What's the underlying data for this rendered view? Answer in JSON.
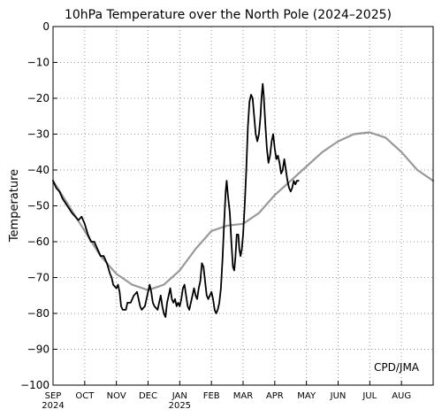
{
  "chart_data": {
    "type": "line",
    "title": "10hPa Temperature over the North Pole (2024–2025)",
    "ylabel": "Temperature",
    "xlabel": "",
    "ylim": [
      -100,
      0
    ],
    "yticks": [
      0,
      -10,
      -20,
      -30,
      -40,
      -50,
      -60,
      -70,
      -80,
      -90,
      -100
    ],
    "xlim": [
      0,
      12
    ],
    "x_unit": "months since 2024-09-01",
    "xticks": [
      {
        "x": 0,
        "label": "SEP",
        "sub": "2024"
      },
      {
        "x": 1,
        "label": "OCT"
      },
      {
        "x": 2,
        "label": "NOV"
      },
      {
        "x": 3,
        "label": "DEC"
      },
      {
        "x": 4,
        "label": "JAN",
        "sub": "2025"
      },
      {
        "x": 5,
        "label": "FEB"
      },
      {
        "x": 6,
        "label": "MAR"
      },
      {
        "x": 7,
        "label": "APR"
      },
      {
        "x": 8,
        "label": "MAY"
      },
      {
        "x": 9,
        "label": "JUN"
      },
      {
        "x": 10,
        "label": "JUL"
      },
      {
        "x": 11,
        "label": "AUG"
      }
    ],
    "grid": true,
    "annotation": "CPD/JMA",
    "series": [
      {
        "color": "#999999",
        "points": [
          [
            0,
            -43
          ],
          [
            0.5,
            -50
          ],
          [
            1,
            -57
          ],
          [
            1.5,
            -64
          ],
          [
            2,
            -69
          ],
          [
            2.5,
            -72
          ],
          [
            3,
            -73.5
          ],
          [
            3.5,
            -72
          ],
          [
            4,
            -68
          ],
          [
            4.5,
            -62
          ],
          [
            5,
            -57
          ],
          [
            5.5,
            -55.5
          ],
          [
            6,
            -55
          ],
          [
            6.5,
            -52
          ],
          [
            7,
            -47
          ],
          [
            7.5,
            -43
          ],
          [
            8,
            -39
          ],
          [
            8.5,
            -35
          ],
          [
            9,
            -32
          ],
          [
            9.5,
            -30
          ],
          [
            10,
            -29.5
          ],
          [
            10.5,
            -31
          ],
          [
            11,
            -35
          ],
          [
            11.5,
            -40
          ],
          [
            12,
            -43
          ]
        ]
      },
      {
        "color": "#000000",
        "points": [
          [
            0,
            -43
          ],
          [
            0.1,
            -45
          ],
          [
            0.2,
            -46
          ],
          [
            0.3,
            -48
          ],
          [
            0.45,
            -50
          ],
          [
            0.6,
            -52
          ],
          [
            0.8,
            -54
          ],
          [
            0.9,
            -53
          ],
          [
            1,
            -55
          ],
          [
            1.1,
            -58
          ],
          [
            1.2,
            -60
          ],
          [
            1.3,
            -60
          ],
          [
            1.4,
            -62
          ],
          [
            1.5,
            -64
          ],
          [
            1.6,
            -64
          ],
          [
            1.7,
            -66
          ],
          [
            1.8,
            -69
          ],
          [
            1.85,
            -70
          ],
          [
            1.9,
            -72
          ],
          [
            2,
            -73
          ],
          [
            2.05,
            -72
          ],
          [
            2.1,
            -74
          ],
          [
            2.15,
            -78
          ],
          [
            2.2,
            -79
          ],
          [
            2.3,
            -79
          ],
          [
            2.35,
            -77
          ],
          [
            2.45,
            -77
          ],
          [
            2.55,
            -75
          ],
          [
            2.65,
            -74
          ],
          [
            2.7,
            -76
          ],
          [
            2.75,
            -78
          ],
          [
            2.8,
            -79
          ],
          [
            2.9,
            -78
          ],
          [
            2.95,
            -76
          ],
          [
            3,
            -74
          ],
          [
            3.05,
            -72
          ],
          [
            3.1,
            -74
          ],
          [
            3.15,
            -77
          ],
          [
            3.2,
            -78
          ],
          [
            3.3,
            -79
          ],
          [
            3.35,
            -77
          ],
          [
            3.4,
            -75
          ],
          [
            3.45,
            -78
          ],
          [
            3.5,
            -80
          ],
          [
            3.55,
            -81
          ],
          [
            3.6,
            -77
          ],
          [
            3.65,
            -75
          ],
          [
            3.7,
            -73
          ],
          [
            3.75,
            -76
          ],
          [
            3.8,
            -77
          ],
          [
            3.85,
            -76
          ],
          [
            3.9,
            -78
          ],
          [
            3.95,
            -77
          ],
          [
            4,
            -78
          ],
          [
            4.05,
            -76
          ],
          [
            4.1,
            -73
          ],
          [
            4.15,
            -72
          ],
          [
            4.2,
            -75
          ],
          [
            4.25,
            -78
          ],
          [
            4.3,
            -79
          ],
          [
            4.35,
            -77
          ],
          [
            4.4,
            -75
          ],
          [
            4.45,
            -73
          ],
          [
            4.5,
            -75
          ],
          [
            4.55,
            -76
          ],
          [
            4.6,
            -73
          ],
          [
            4.65,
            -71
          ],
          [
            4.7,
            -66
          ],
          [
            4.75,
            -67
          ],
          [
            4.8,
            -71
          ],
          [
            4.85,
            -75
          ],
          [
            4.9,
            -76
          ],
          [
            4.95,
            -75
          ],
          [
            5,
            -74
          ],
          [
            5.05,
            -76
          ],
          [
            5.1,
            -79
          ],
          [
            5.15,
            -80
          ],
          [
            5.2,
            -79
          ],
          [
            5.25,
            -77
          ],
          [
            5.3,
            -73
          ],
          [
            5.35,
            -65
          ],
          [
            5.4,
            -55
          ],
          [
            5.45,
            -46
          ],
          [
            5.48,
            -43
          ],
          [
            5.52,
            -47
          ],
          [
            5.58,
            -52
          ],
          [
            5.63,
            -60
          ],
          [
            5.68,
            -67
          ],
          [
            5.72,
            -68
          ],
          [
            5.76,
            -64
          ],
          [
            5.8,
            -58
          ],
          [
            5.85,
            -58
          ],
          [
            5.88,
            -62
          ],
          [
            5.92,
            -64
          ],
          [
            5.96,
            -62
          ],
          [
            6,
            -58
          ],
          [
            6.05,
            -50
          ],
          [
            6.1,
            -40
          ],
          [
            6.15,
            -28
          ],
          [
            6.2,
            -21
          ],
          [
            6.25,
            -19
          ],
          [
            6.3,
            -20
          ],
          [
            6.35,
            -25
          ],
          [
            6.4,
            -30
          ],
          [
            6.45,
            -32
          ],
          [
            6.5,
            -30
          ],
          [
            6.55,
            -25
          ],
          [
            6.58,
            -20
          ],
          [
            6.62,
            -16
          ],
          [
            6.65,
            -19
          ],
          [
            6.7,
            -27
          ],
          [
            6.75,
            -34
          ],
          [
            6.8,
            -38
          ],
          [
            6.85,
            -36
          ],
          [
            6.9,
            -32
          ],
          [
            6.95,
            -30
          ],
          [
            7,
            -34
          ],
          [
            7.05,
            -37
          ],
          [
            7.1,
            -36
          ],
          [
            7.15,
            -38
          ],
          [
            7.2,
            -41
          ],
          [
            7.25,
            -40
          ],
          [
            7.3,
            -37
          ],
          [
            7.35,
            -40
          ],
          [
            7.4,
            -43
          ],
          [
            7.45,
            -45
          ],
          [
            7.5,
            -46
          ],
          [
            7.55,
            -45
          ],
          [
            7.6,
            -43
          ],
          [
            7.65,
            -44
          ],
          [
            7.7,
            -43
          ],
          [
            7.75,
            -43
          ]
        ]
      }
    ]
  }
}
